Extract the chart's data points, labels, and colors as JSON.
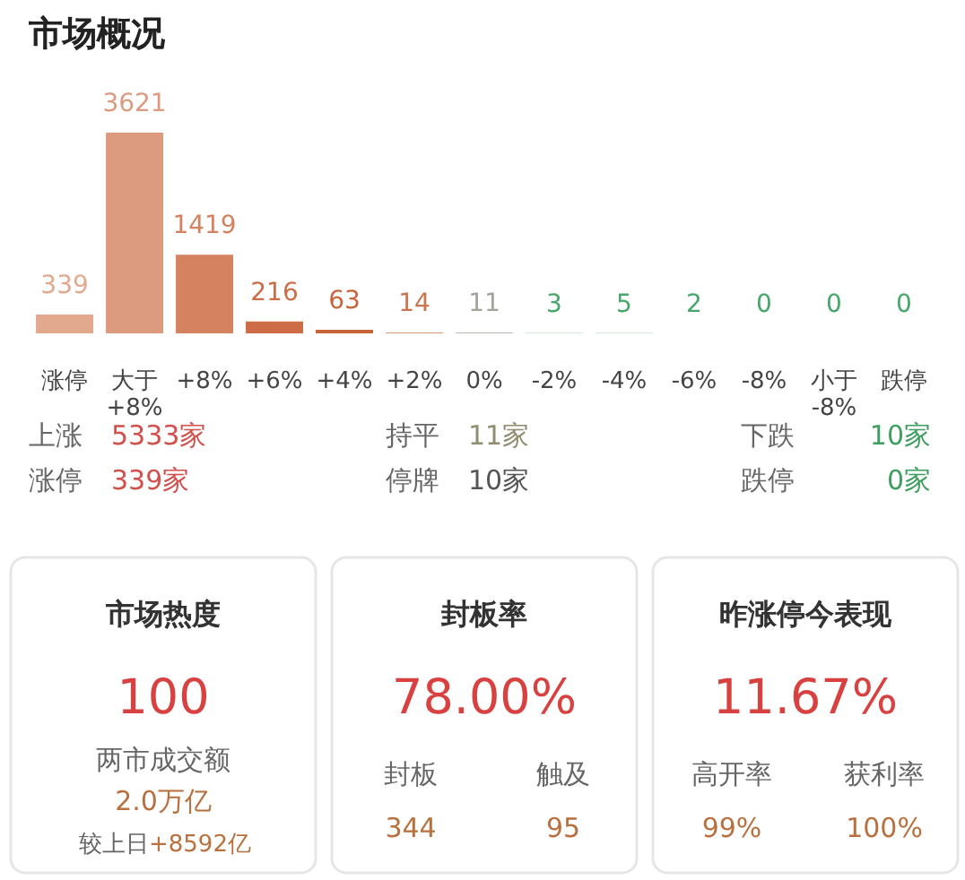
{
  "chart_data": [
    {
      "type": "bar",
      "title": "市场概况",
      "categories": [
        "涨停",
        "大于\n+8%",
        "+8%",
        "+6%",
        "+4%",
        "+2%",
        "0%",
        "-2%",
        "-4%",
        "-6%",
        "-8%",
        "小于\n-8%",
        "跌停"
      ],
      "values": [
        339,
        3621,
        1419,
        216,
        63,
        14,
        11,
        3,
        5,
        2,
        0,
        0,
        0
      ],
      "colors": [
        "#e3a98f",
        "#dc9b7f",
        "#d4825f",
        "#cd6d47",
        "#c8643c",
        "#c8764f",
        "#a3a39a",
        "#46a86a",
        "#46a86a",
        "#46a86a",
        "#46a86a",
        "#46a86a",
        "#46a86a"
      ],
      "data_labels": true
    },
    {
      "type": "other",
      "categories": [
        "上涨",
        "持平",
        "下跌",
        "涨停",
        "停牌",
        "跌停"
      ],
      "value_labels": [
        "5333家",
        "11家",
        "10家",
        "339家",
        "10家",
        "0家"
      ],
      "colors": [
        "#d2504b",
        "#8f8c70",
        "#3f9e5f",
        "#d2504b",
        "#555555",
        "#3f9e5f"
      ]
    },
    {
      "type": "other",
      "title": "市场热度",
      "annotations": [
        "100"
      ],
      "categories": [
        "两市成交额",
        "较上日"
      ],
      "value_labels": [
        "2.0万亿",
        "+8592亿"
      ]
    },
    {
      "type": "other",
      "title": "封板率",
      "annotations": [
        "78.00%"
      ],
      "categories": [
        "封板",
        "触及"
      ],
      "value_labels": [
        "344",
        "95"
      ]
    },
    {
      "type": "other",
      "title": "昨涨停今表现",
      "annotations": [
        "11.67%"
      ],
      "categories": [
        "高开率",
        "获利率"
      ],
      "value_labels": [
        "99%",
        "100%"
      ]
    }
  ]
}
